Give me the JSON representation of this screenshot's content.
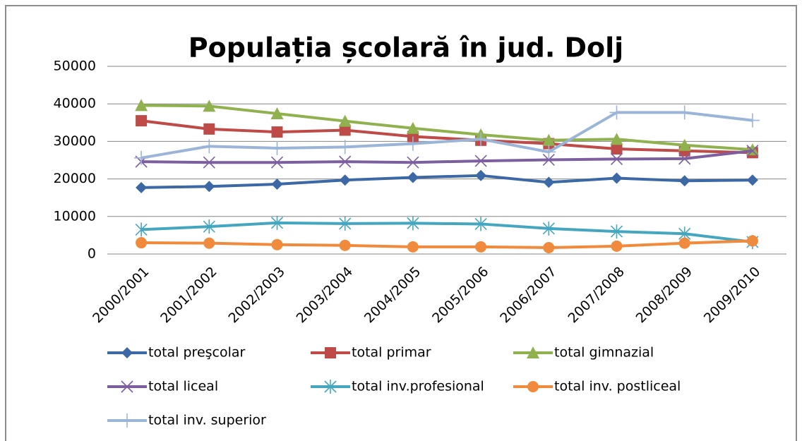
{
  "chart_data": {
    "type": "line",
    "title": "Populația școlară în jud. Dolj",
    "categories": [
      "2000/2001",
      "2001/2002",
      "2002/2003",
      "2003/2004",
      "2004/2005",
      "2005/2006",
      "2006/2007",
      "2007/2008",
      "2008/2009",
      "2009/2010"
    ],
    "ylim": [
      0,
      50000
    ],
    "yticks": [
      0,
      10000,
      20000,
      30000,
      40000,
      50000
    ],
    "grid": true,
    "series": [
      {
        "name": "total preşcolar",
        "color": "#3c69a5",
        "marker": "diamond",
        "values": [
          17700,
          18000,
          18600,
          19700,
          20400,
          20900,
          19100,
          20200,
          19500,
          19700
        ]
      },
      {
        "name": "total primar",
        "color": "#be4b48",
        "marker": "square",
        "values": [
          35500,
          33300,
          32500,
          33000,
          31300,
          30300,
          29400,
          28000,
          27500,
          27000
        ]
      },
      {
        "name": "total gimnazial",
        "color": "#8fb24f",
        "marker": "triangle",
        "values": [
          39600,
          39400,
          37400,
          35400,
          33500,
          31800,
          30300,
          30600,
          29000,
          27800
        ]
      },
      {
        "name": "total liceal",
        "color": "#7d5fa0",
        "marker": "x",
        "values": [
          24600,
          24400,
          24400,
          24600,
          24400,
          24800,
          25100,
          25300,
          25400,
          27500
        ]
      },
      {
        "name": "total inv.profesional",
        "color": "#44a6bf",
        "marker": "asterisk",
        "values": [
          6500,
          7300,
          8300,
          8100,
          8200,
          8000,
          6800,
          6000,
          5400,
          3200
        ]
      },
      {
        "name": "total inv. postliceal",
        "color": "#f08a3c",
        "marker": "circle",
        "values": [
          3000,
          2900,
          2500,
          2300,
          1900,
          1900,
          1700,
          2100,
          2900,
          3500
        ]
      },
      {
        "name": "total inv. superior",
        "color": "#9bb5d9",
        "marker": "plus",
        "values": [
          25600,
          28700,
          28200,
          28500,
          29400,
          30600,
          27200,
          37700,
          37700,
          35600
        ]
      }
    ]
  }
}
